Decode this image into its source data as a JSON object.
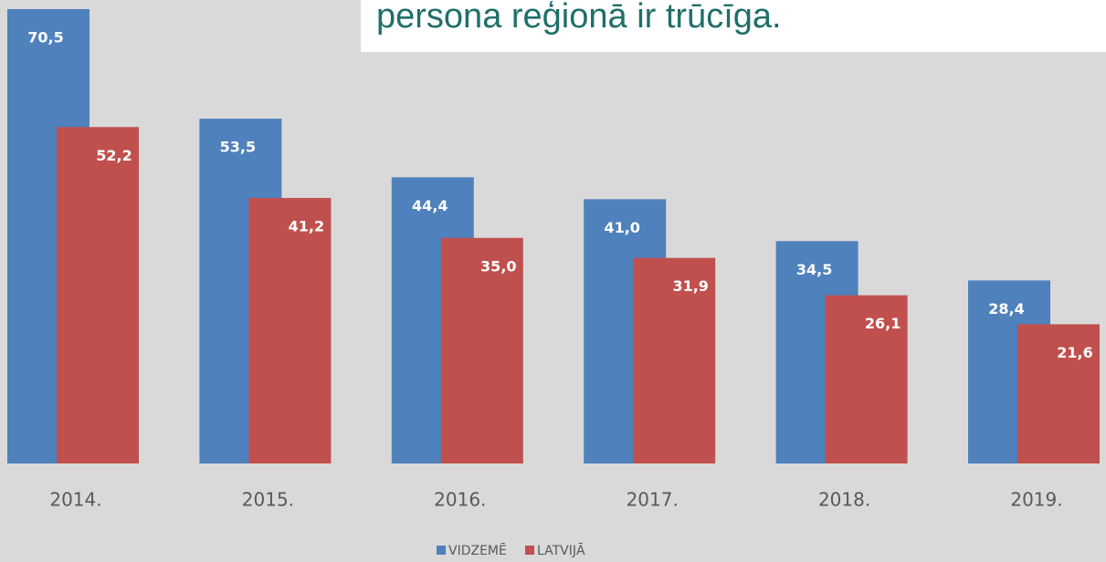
{
  "chart_data": {
    "type": "bar",
    "annotation": "persona reģionā ir trūcīga.",
    "categories": [
      "2014.",
      "2015.",
      "2016.",
      "2017.",
      "2018.",
      "2019."
    ],
    "series": [
      {
        "name": "VIDZEMĒ",
        "color": "#4f81bd",
        "values": [
          70.5,
          53.5,
          44.4,
          41.0,
          34.5,
          28.4
        ],
        "value_labels": [
          "70,5",
          "53,5",
          "44,4",
          "41,0",
          "34,5",
          "28,4"
        ]
      },
      {
        "name": "LATVIJĀ",
        "color": "#c0504d",
        "values": [
          52.2,
          41.2,
          35.0,
          31.9,
          26.1,
          21.6
        ],
        "value_labels": [
          "52,2",
          "41,2",
          "35,0",
          "31,9",
          "26,1",
          "21,6"
        ]
      }
    ]
  }
}
